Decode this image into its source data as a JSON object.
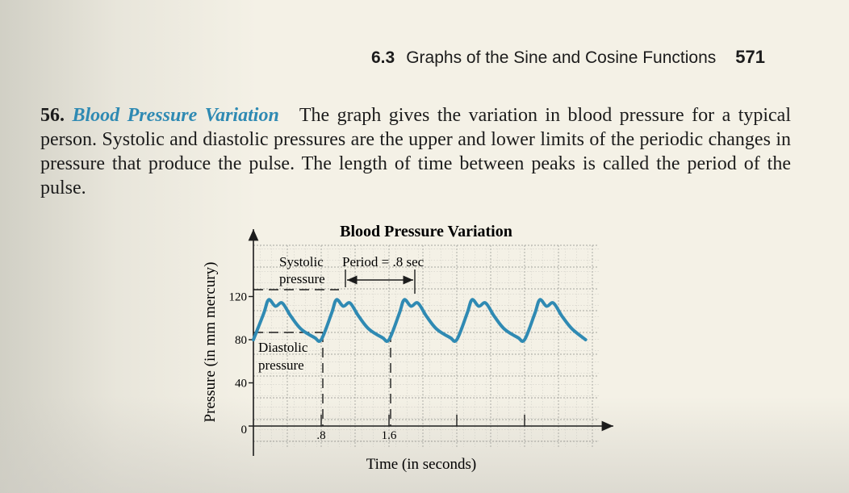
{
  "running_head": {
    "section": "6.3",
    "title": "Graphs of the Sine and Cosine Functions",
    "page": "571"
  },
  "problem": {
    "number": "56.",
    "title": "Blood Pressure Variation",
    "text": "The graph gives the variation in blood pressure for a typical person. Systolic and diastolic pressures are the upper and lower limits of the periodic changes in pressure that produce the pulse. The length of time between peaks is called the period of the pulse."
  },
  "chart_data": {
    "type": "line",
    "title": "Blood Pressure Variation",
    "xlabel": "Time (in seconds)",
    "ylabel": "Pressure (in mm mercury)",
    "x_ticks": [
      0.8,
      1.6
    ],
    "x_tick_labels": [
      ".8",
      "1.6"
    ],
    "y_ticks": [
      0,
      40,
      80,
      120
    ],
    "y_tick_labels": [
      "0",
      "40",
      "80",
      "120"
    ],
    "origin_label": "0",
    "xlim": [
      0,
      4.2
    ],
    "ylim": [
      0,
      160
    ],
    "grid": true,
    "series": [
      {
        "color": "#2f8ab3",
        "x": [
          0.0,
          0.12,
          0.18,
          0.26,
          0.34,
          0.44,
          0.56,
          0.72,
          0.8,
          0.92,
          0.98,
          1.06,
          1.14,
          1.24,
          1.36,
          1.52,
          1.6,
          1.72,
          1.78,
          1.86,
          1.94,
          2.04,
          2.16,
          2.32,
          2.4,
          2.52,
          2.58,
          2.66,
          2.74,
          2.84,
          2.96,
          3.12,
          3.2,
          3.32,
          3.38,
          3.46,
          3.54,
          3.64,
          3.76,
          3.92
        ],
        "y": [
          80,
          104,
          117,
          111,
          114,
          102,
          90,
          82,
          80,
          104,
          117,
          111,
          114,
          102,
          90,
          82,
          80,
          104,
          117,
          111,
          114,
          102,
          90,
          82,
          80,
          104,
          117,
          111,
          114,
          102,
          90,
          82,
          80,
          104,
          117,
          111,
          114,
          102,
          90,
          80
        ]
      }
    ],
    "annotations": [
      {
        "text": "Systolic",
        "position": "top-left"
      },
      {
        "text": "pressure",
        "position": "top-left"
      },
      {
        "text": "Period = .8 sec",
        "position": "top-center"
      },
      {
        "text": "Diastolic",
        "position": "middle-left"
      },
      {
        "text": "pressure",
        "position": "middle-left"
      }
    ],
    "reference_values": {
      "systolic": 120,
      "diastolic": 80,
      "period": 0.8
    }
  }
}
